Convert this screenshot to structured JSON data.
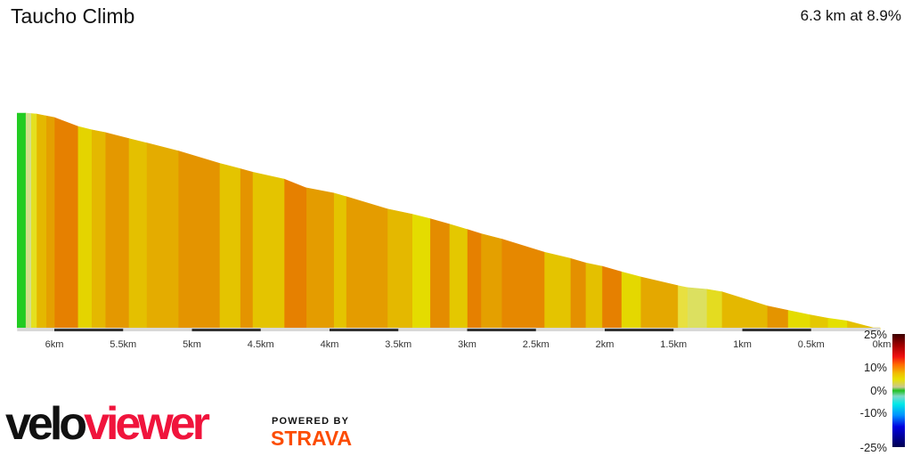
{
  "header": {
    "title": "Taucho Climb",
    "summary": "6.3 km at 8.9%"
  },
  "chart_data": {
    "type": "area",
    "title": "Taucho Climb",
    "x_unit": "km",
    "x_direction": "reversed",
    "xlim": [
      6.27,
      0
    ],
    "x_ticks": [
      "6km",
      "5.5km",
      "5km",
      "4.5km",
      "4km",
      "3.5km",
      "3km",
      "2.5km",
      "2km",
      "1.5km",
      "1km",
      "0.5km",
      "0km"
    ],
    "x_tick_values": [
      6,
      5.5,
      5,
      4.5,
      4,
      3.5,
      3,
      2.5,
      2,
      1.5,
      1,
      0.5,
      0
    ],
    "segments": [
      {
        "from_km": 6.27,
        "to_km": 6.21,
        "grade": 0,
        "color": "#22cc22"
      },
      {
        "from_km": 6.21,
        "to_km": 6.17,
        "grade": 3,
        "color": "#d4e08a"
      },
      {
        "from_km": 6.17,
        "to_km": 6.13,
        "grade": 3,
        "color": "#e4e020"
      },
      {
        "from_km": 6.13,
        "to_km": 6.06,
        "grade": 7,
        "color": "#e4b800"
      },
      {
        "from_km": 6.06,
        "to_km": 6.0,
        "grade": 7,
        "color": "#e4a000"
      },
      {
        "from_km": 6.0,
        "to_km": 5.83,
        "grade": 13.8,
        "color": "#e68000"
      },
      {
        "from_km": 5.83,
        "to_km": 5.73,
        "grade": 9.0,
        "color": "#e4d400"
      },
      {
        "from_km": 5.73,
        "to_km": 5.63,
        "grade": 7.2,
        "color": "#e4b800"
      },
      {
        "from_km": 5.63,
        "to_km": 5.46,
        "grade": 9.3,
        "color": "#e49800"
      },
      {
        "from_km": 5.46,
        "to_km": 5.33,
        "grade": 9.0,
        "color": "#e4c000"
      },
      {
        "from_km": 5.33,
        "to_km": 5.1,
        "grade": 9.2,
        "color": "#e4ac00"
      },
      {
        "from_km": 5.1,
        "to_km": 4.8,
        "grade": 10.9,
        "color": "#e49400"
      },
      {
        "from_km": 4.8,
        "to_km": 4.65,
        "grade": 9.4,
        "color": "#e4c400"
      },
      {
        "from_km": 4.65,
        "to_km": 4.56,
        "grade": 10.3,
        "color": "#e49400"
      },
      {
        "from_km": 4.56,
        "to_km": 4.33,
        "grade": 8.0,
        "color": "#e4c400"
      },
      {
        "from_km": 4.33,
        "to_km": 4.17,
        "grade": 14.4,
        "color": "#e68000"
      },
      {
        "from_km": 4.17,
        "to_km": 3.97,
        "grade": 6.9,
        "color": "#e49c00"
      },
      {
        "from_km": 3.97,
        "to_km": 3.88,
        "grade": 10.3,
        "color": "#e4c400"
      },
      {
        "from_km": 3.88,
        "to_km": 3.58,
        "grade": 10.9,
        "color": "#e49c00"
      },
      {
        "from_km": 3.58,
        "to_km": 3.4,
        "grade": 7.7,
        "color": "#e4b800"
      },
      {
        "from_km": 3.4,
        "to_km": 3.27,
        "grade": 9.0,
        "color": "#e4dc00"
      },
      {
        "from_km": 3.27,
        "to_km": 3.13,
        "grade": 10.3,
        "color": "#e48c00"
      },
      {
        "from_km": 3.13,
        "to_km": 3.0,
        "grade": 10.8,
        "color": "#e4c800"
      },
      {
        "from_km": 3.0,
        "to_km": 2.9,
        "grade": 11.2,
        "color": "#e68000"
      },
      {
        "from_km": 2.9,
        "to_km": 2.75,
        "grade": 9.4,
        "color": "#e4a000"
      },
      {
        "from_km": 2.75,
        "to_km": 2.44,
        "grade": 11.2,
        "color": "#e68800"
      },
      {
        "from_km": 2.44,
        "to_km": 2.25,
        "grade": 8.7,
        "color": "#e4c400"
      },
      {
        "from_km": 2.25,
        "to_km": 2.14,
        "grade": 10.6,
        "color": "#e49000"
      },
      {
        "from_km": 2.14,
        "to_km": 2.02,
        "grade": 7.6,
        "color": "#e4c000"
      },
      {
        "from_km": 2.02,
        "to_km": 1.88,
        "grade": 10.3,
        "color": "#e68000"
      },
      {
        "from_km": 1.88,
        "to_km": 1.74,
        "grade": 9.8,
        "color": "#e4d800"
      },
      {
        "from_km": 1.74,
        "to_km": 1.47,
        "grade": 8.5,
        "color": "#e4a800"
      },
      {
        "from_km": 1.47,
        "to_km": 1.4,
        "grade": 7.2,
        "color": "#e8e040"
      },
      {
        "from_km": 1.4,
        "to_km": 1.26,
        "grade": 3.3,
        "color": "#dce060"
      },
      {
        "from_km": 1.26,
        "to_km": 1.15,
        "grade": 6.0,
        "color": "#e4dc20"
      },
      {
        "from_km": 1.15,
        "to_km": 0.82,
        "grade": 11.3,
        "color": "#e4b800"
      },
      {
        "from_km": 0.82,
        "to_km": 0.67,
        "grade": 7.8,
        "color": "#e49400"
      },
      {
        "from_km": 0.67,
        "to_km": 0.51,
        "grade": 7.5,
        "color": "#e4dc00"
      },
      {
        "from_km": 0.51,
        "to_km": 0.38,
        "grade": 6.8,
        "color": "#e4c800"
      },
      {
        "from_km": 0.38,
        "to_km": 0.24,
        "grade": 5.1,
        "color": "#e4e000"
      },
      {
        "from_km": 0.24,
        "to_km": 0.0,
        "grade": 9.5,
        "color": "#e4c000"
      }
    ],
    "legend": {
      "title": "",
      "labels": [
        "25%",
        "10%",
        "0%",
        "-10%",
        "-25%"
      ],
      "range": [
        -25,
        25
      ]
    },
    "grid": false
  },
  "branding": {
    "logo_velo": "velo",
    "logo_viewer": "viewer",
    "powered_by": "POWERED BY",
    "strava": "STRAVA",
    "logo_color": "#f0143c",
    "strava_color": "#fc4c02"
  }
}
